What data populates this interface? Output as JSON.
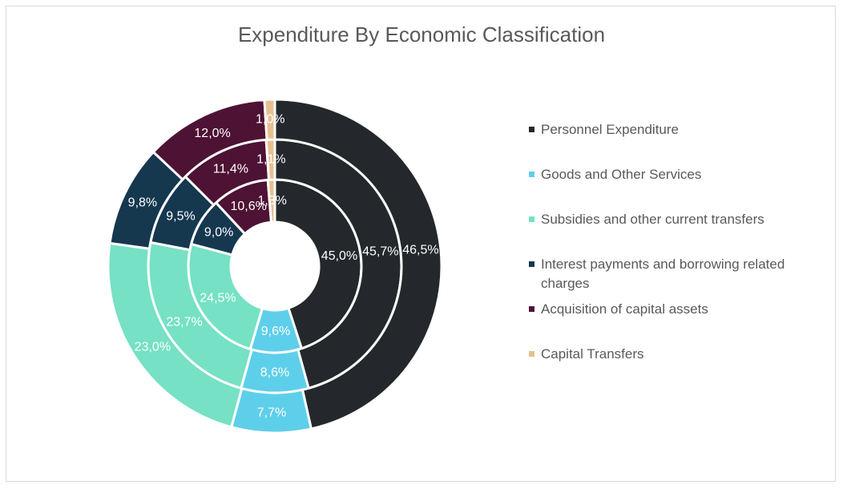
{
  "chart_data": {
    "type": "pie",
    "subtype": "multi-ring doughnut",
    "title": "Expenditure By Economic Classification",
    "categories": [
      "Personnel Expenditure",
      "Goods and Other Services",
      "Subsidies and other current transfers",
      "Interest payments and borrowing related charges",
      "Acquisition of capital assets",
      "Capital Transfers"
    ],
    "colors": [
      "#24282c",
      "#5ecfea",
      "#76e1c4",
      "#15384f",
      "#4e1234",
      "#e8c08f"
    ],
    "rings": [
      {
        "values": [
          45.0,
          9.6,
          24.5,
          9.0,
          10.6,
          1.3
        ],
        "labels": [
          "45,0%",
          "9,6%",
          "24,5%",
          "9,0%",
          "10,6%",
          "1,3%"
        ]
      },
      {
        "values": [
          45.7,
          8.6,
          23.7,
          9.5,
          11.4,
          1.1
        ],
        "labels": [
          "45,7%",
          "8,6%",
          "23,7%",
          "9,5%",
          "11,4%",
          "1,1%"
        ]
      },
      {
        "values": [
          46.5,
          7.7,
          23.0,
          9.8,
          12.0,
          1.0
        ],
        "labels": [
          "46,5%",
          "7,7%",
          "23,0%",
          "9,8%",
          "12,0%",
          "1,0%"
        ]
      }
    ],
    "legend_position": "right"
  }
}
